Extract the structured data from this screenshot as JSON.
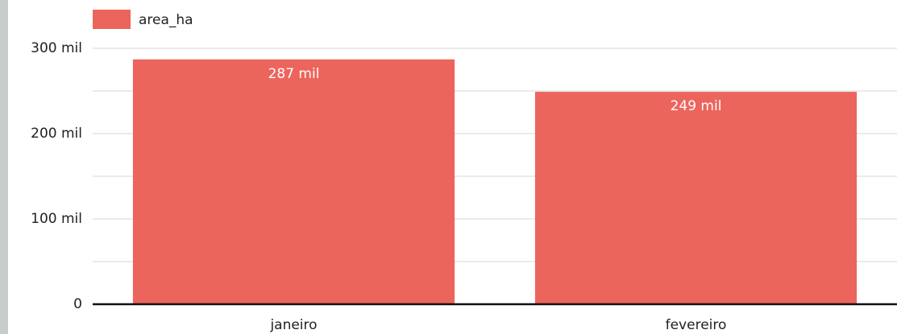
{
  "chart_data": {
    "type": "bar",
    "categories": [
      "janeiro",
      "fevereiro"
    ],
    "series": [
      {
        "name": "area_ha",
        "color": "#ec655c",
        "values": [
          287000,
          249000
        ],
        "value_labels": [
          "287 mil",
          "249 mil"
        ]
      }
    ],
    "ylim": [
      0,
      300000
    ],
    "yticks": [
      0,
      {
        "value": 100000,
        "label": "100 mil"
      },
      {
        "value": 200000,
        "label": "200 mil"
      },
      {
        "value": 300000,
        "label": "300 mil"
      }
    ],
    "minor_yticks": [
      50000,
      150000,
      250000
    ],
    "grid": true,
    "legend": "top-left"
  }
}
